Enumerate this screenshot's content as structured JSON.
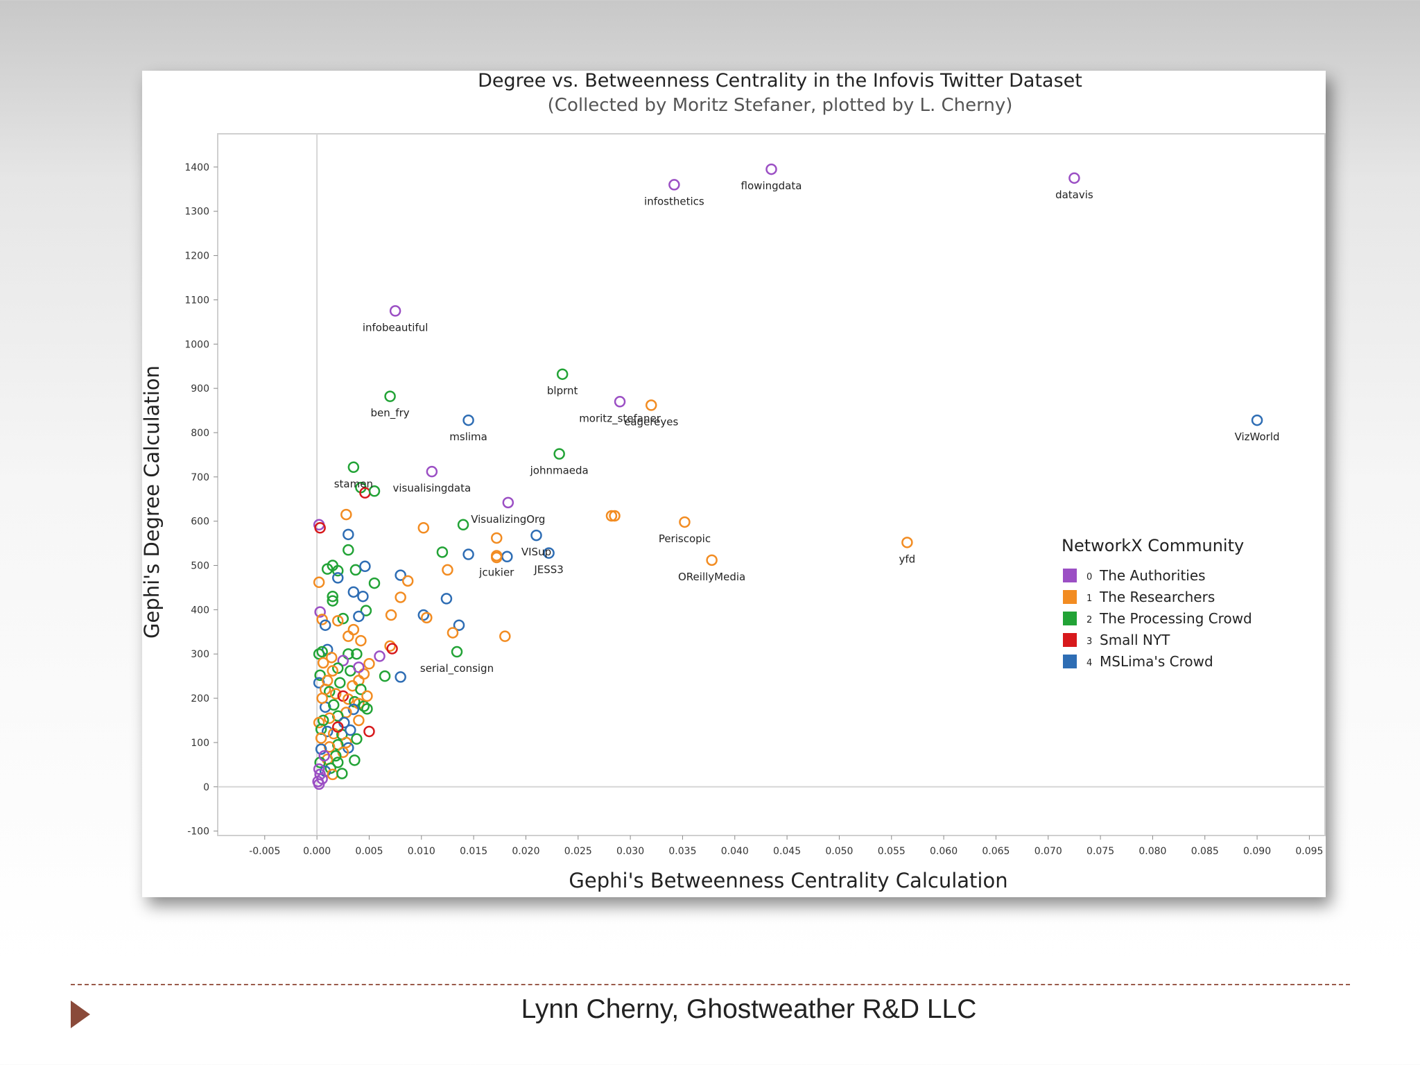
{
  "chart_data": {
    "type": "scatter",
    "title": "Degree vs. Betweenness Centrality in the Infovis Twitter Dataset",
    "subtitle": "(Collected by Moritz Stefaner, plotted by L. Cherny)",
    "xlabel": "Gephi's Betweenness Centrality Calculation",
    "ylabel": "Gephi's Degree Calculation",
    "xlim": [
      -0.0095,
      0.0965
    ],
    "ylim": [
      -110,
      1475
    ],
    "x_ticks": [
      -0.005,
      0.0,
      0.005,
      0.01,
      0.015,
      0.02,
      0.025,
      0.03,
      0.035,
      0.04,
      0.045,
      0.05,
      0.055,
      0.06,
      0.065,
      0.07,
      0.075,
      0.08,
      0.085,
      0.09,
      0.095
    ],
    "x_tick_labels": [
      "-0.005",
      "0.000",
      "0.005",
      "0.010",
      "0.015",
      "0.020",
      "0.025",
      "0.030",
      "0.035",
      "0.040",
      "0.045",
      "0.050",
      "0.055",
      "0.060",
      "0.065",
      "0.070",
      "0.075",
      "0.080",
      "0.085",
      "0.090",
      "0.095"
    ],
    "y_ticks": [
      -100,
      0,
      100,
      200,
      300,
      400,
      500,
      600,
      700,
      800,
      900,
      1000,
      1100,
      1200,
      1300,
      1400
    ],
    "y_tick_labels": [
      "-100",
      "0",
      "100",
      "200",
      "300",
      "400",
      "500",
      "600",
      "700",
      "800",
      "900",
      "1000",
      "1100",
      "1200",
      "1300",
      "1400"
    ],
    "legend": {
      "title": "NetworkX Community",
      "position": "right-middle",
      "entries": [
        {
          "id": 0,
          "num": "0",
          "name": "The Authorities",
          "color": "#9b4fc4"
        },
        {
          "id": 1,
          "num": "1",
          "name": "The Researchers",
          "color": "#f28c22"
        },
        {
          "id": 2,
          "num": "2",
          "name": "The Processing Crowd",
          "color": "#22a336"
        },
        {
          "id": 3,
          "num": "3",
          "name": "Small NYT",
          "color": "#d7191c"
        },
        {
          "id": 4,
          "num": "4",
          "name": "MSLima's Crowd",
          "color": "#2e6db4"
        }
      ]
    },
    "labeled_points": [
      {
        "label": "infosthetics",
        "x": 0.0342,
        "y": 1360,
        "group": 0
      },
      {
        "label": "flowingdata",
        "x": 0.0435,
        "y": 1395,
        "group": 0
      },
      {
        "label": "datavis",
        "x": 0.0725,
        "y": 1375,
        "group": 0
      },
      {
        "label": "infobeautiful",
        "x": 0.0075,
        "y": 1075,
        "group": 0
      },
      {
        "label": "blprnt",
        "x": 0.0235,
        "y": 932,
        "group": 2
      },
      {
        "label": "moritz_stefaner",
        "x": 0.029,
        "y": 870,
        "group": 0
      },
      {
        "label": "eagereyes",
        "x": 0.032,
        "y": 862,
        "group": 1
      },
      {
        "label": "ben_fry",
        "x": 0.007,
        "y": 882,
        "group": 2
      },
      {
        "label": "mslima",
        "x": 0.0145,
        "y": 828,
        "group": 4
      },
      {
        "label": "VizWorld",
        "x": 0.09,
        "y": 828,
        "group": 4
      },
      {
        "label": "johnmaeda",
        "x": 0.0232,
        "y": 752,
        "group": 2
      },
      {
        "label": "stamen",
        "x": 0.0035,
        "y": 722,
        "group": 2
      },
      {
        "label": "visualisingdata",
        "x": 0.011,
        "y": 712,
        "group": 0
      },
      {
        "label": "VisualizingOrg",
        "x": 0.0183,
        "y": 642,
        "group": 0
      },
      {
        "label": "VISup",
        "x": 0.021,
        "y": 568,
        "group": 4
      },
      {
        "label": "Periscopic",
        "x": 0.0352,
        "y": 598,
        "group": 1
      },
      {
        "label": "yfd",
        "x": 0.0565,
        "y": 552,
        "group": 1
      },
      {
        "label": "jcukier",
        "x": 0.0172,
        "y": 522,
        "group": 1
      },
      {
        "label": "JESS3",
        "x": 0.0222,
        "y": 528,
        "group": 4
      },
      {
        "label": "OReillyMedia",
        "x": 0.0378,
        "y": 512,
        "group": 1
      },
      {
        "label": "serial_consign",
        "x": 0.0134,
        "y": 305,
        "group": 2
      }
    ],
    "other_points": [
      {
        "x": 0.0002,
        "y": 592,
        "group": 0
      },
      {
        "x": 0.0003,
        "y": 585,
        "group": 3
      },
      {
        "x": 0.0028,
        "y": 615,
        "group": 1
      },
      {
        "x": 0.0042,
        "y": 676,
        "group": 2
      },
      {
        "x": 0.0046,
        "y": 664,
        "group": 3
      },
      {
        "x": 0.0055,
        "y": 668,
        "group": 2
      },
      {
        "x": 0.003,
        "y": 570,
        "group": 4
      },
      {
        "x": 0.003,
        "y": 535,
        "group": 2
      },
      {
        "x": 0.001,
        "y": 492,
        "group": 2
      },
      {
        "x": 0.0015,
        "y": 500,
        "group": 2
      },
      {
        "x": 0.002,
        "y": 488,
        "group": 2
      },
      {
        "x": 0.002,
        "y": 472,
        "group": 4
      },
      {
        "x": 0.0002,
        "y": 462,
        "group": 1
      },
      {
        "x": 0.0037,
        "y": 490,
        "group": 2
      },
      {
        "x": 0.0046,
        "y": 498,
        "group": 4
      },
      {
        "x": 0.0055,
        "y": 460,
        "group": 2
      },
      {
        "x": 0.0035,
        "y": 440,
        "group": 4
      },
      {
        "x": 0.0044,
        "y": 430,
        "group": 4
      },
      {
        "x": 0.0015,
        "y": 430,
        "group": 2
      },
      {
        "x": 0.0015,
        "y": 420,
        "group": 2
      },
      {
        "x": 0.0047,
        "y": 398,
        "group": 2
      },
      {
        "x": 0.004,
        "y": 385,
        "group": 4
      },
      {
        "x": 0.0025,
        "y": 380,
        "group": 2
      },
      {
        "x": 0.002,
        "y": 375,
        "group": 1
      },
      {
        "x": 0.0003,
        "y": 395,
        "group": 0
      },
      {
        "x": 0.0005,
        "y": 378,
        "group": 1
      },
      {
        "x": 0.0008,
        "y": 365,
        "group": 4
      },
      {
        "x": 0.0035,
        "y": 355,
        "group": 1
      },
      {
        "x": 0.003,
        "y": 340,
        "group": 1
      },
      {
        "x": 0.0042,
        "y": 330,
        "group": 1
      },
      {
        "x": 0.0102,
        "y": 585,
        "group": 1
      },
      {
        "x": 0.014,
        "y": 592,
        "group": 2
      },
      {
        "x": 0.0172,
        "y": 562,
        "group": 1
      },
      {
        "x": 0.012,
        "y": 530,
        "group": 2
      },
      {
        "x": 0.0145,
        "y": 525,
        "group": 4
      },
      {
        "x": 0.0172,
        "y": 518,
        "group": 1
      },
      {
        "x": 0.0182,
        "y": 520,
        "group": 4
      },
      {
        "x": 0.0125,
        "y": 490,
        "group": 1
      },
      {
        "x": 0.008,
        "y": 478,
        "group": 4
      },
      {
        "x": 0.0087,
        "y": 465,
        "group": 1
      },
      {
        "x": 0.0124,
        "y": 425,
        "group": 4
      },
      {
        "x": 0.008,
        "y": 428,
        "group": 1
      },
      {
        "x": 0.0071,
        "y": 388,
        "group": 1
      },
      {
        "x": 0.0102,
        "y": 388,
        "group": 4
      },
      {
        "x": 0.0105,
        "y": 382,
        "group": 1
      },
      {
        "x": 0.0136,
        "y": 365,
        "group": 4
      },
      {
        "x": 0.013,
        "y": 348,
        "group": 1
      },
      {
        "x": 0.018,
        "y": 340,
        "group": 1
      },
      {
        "x": 0.0282,
        "y": 612,
        "group": 1
      },
      {
        "x": 0.0285,
        "y": 612,
        "group": 1
      },
      {
        "x": 0.007,
        "y": 318,
        "group": 1
      },
      {
        "x": 0.0072,
        "y": 312,
        "group": 3
      },
      {
        "x": 0.006,
        "y": 295,
        "group": 0
      },
      {
        "x": 0.0065,
        "y": 250,
        "group": 2
      },
      {
        "x": 0.008,
        "y": 248,
        "group": 4
      },
      {
        "x": 0.005,
        "y": 278,
        "group": 1
      },
      {
        "x": 0.0045,
        "y": 255,
        "group": 1
      },
      {
        "x": 0.004,
        "y": 240,
        "group": 1
      },
      {
        "x": 0.003,
        "y": 300,
        "group": 2
      },
      {
        "x": 0.0025,
        "y": 285,
        "group": 0
      },
      {
        "x": 0.002,
        "y": 268,
        "group": 2
      },
      {
        "x": 0.0015,
        "y": 262,
        "group": 1
      },
      {
        "x": 0.001,
        "y": 310,
        "group": 4
      },
      {
        "x": 0.0005,
        "y": 305,
        "group": 2
      },
      {
        "x": 0.0002,
        "y": 300,
        "group": 2
      },
      {
        "x": 0.0003,
        "y": 252,
        "group": 2
      },
      {
        "x": 0.0002,
        "y": 235,
        "group": 4
      },
      {
        "x": 0.0008,
        "y": 220,
        "group": 1
      },
      {
        "x": 0.0012,
        "y": 215,
        "group": 2
      },
      {
        "x": 0.0018,
        "y": 210,
        "group": 1
      },
      {
        "x": 0.0025,
        "y": 205,
        "group": 3
      },
      {
        "x": 0.003,
        "y": 198,
        "group": 1
      },
      {
        "x": 0.0036,
        "y": 192,
        "group": 2
      },
      {
        "x": 0.004,
        "y": 188,
        "group": 1
      },
      {
        "x": 0.0045,
        "y": 182,
        "group": 2
      },
      {
        "x": 0.0048,
        "y": 176,
        "group": 2
      },
      {
        "x": 0.0035,
        "y": 175,
        "group": 4
      },
      {
        "x": 0.0028,
        "y": 168,
        "group": 1
      },
      {
        "x": 0.002,
        "y": 160,
        "group": 2
      },
      {
        "x": 0.0012,
        "y": 155,
        "group": 1
      },
      {
        "x": 0.0006,
        "y": 150,
        "group": 2
      },
      {
        "x": 0.0002,
        "y": 145,
        "group": 1
      },
      {
        "x": 0.0004,
        "y": 130,
        "group": 2
      },
      {
        "x": 0.001,
        "y": 125,
        "group": 4
      },
      {
        "x": 0.0016,
        "y": 120,
        "group": 1
      },
      {
        "x": 0.0024,
        "y": 118,
        "group": 2
      },
      {
        "x": 0.0032,
        "y": 128,
        "group": 4
      },
      {
        "x": 0.005,
        "y": 125,
        "group": 3
      },
      {
        "x": 0.0038,
        "y": 108,
        "group": 2
      },
      {
        "x": 0.0028,
        "y": 100,
        "group": 1
      },
      {
        "x": 0.002,
        "y": 95,
        "group": 2
      },
      {
        "x": 0.0012,
        "y": 90,
        "group": 1
      },
      {
        "x": 0.0004,
        "y": 85,
        "group": 4
      },
      {
        "x": 0.003,
        "y": 88,
        "group": 4
      },
      {
        "x": 0.0025,
        "y": 78,
        "group": 1
      },
      {
        "x": 0.0018,
        "y": 70,
        "group": 2
      },
      {
        "x": 0.001,
        "y": 62,
        "group": 1
      },
      {
        "x": 0.0003,
        "y": 55,
        "group": 2
      },
      {
        "x": 0.002,
        "y": 55,
        "group": 2
      },
      {
        "x": 0.0013,
        "y": 42,
        "group": 2
      },
      {
        "x": 0.0008,
        "y": 35,
        "group": 4
      },
      {
        "x": 0.0003,
        "y": 28,
        "group": 0
      },
      {
        "x": 0.0015,
        "y": 28,
        "group": 1
      },
      {
        "x": 0.0005,
        "y": 18,
        "group": 0
      },
      {
        "x": 0.0001,
        "y": 12,
        "group": 0
      },
      {
        "x": 0.0002,
        "y": 6,
        "group": 0
      },
      {
        "x": 0.001,
        "y": 240,
        "group": 1
      },
      {
        "x": 0.0022,
        "y": 235,
        "group": 2
      },
      {
        "x": 0.0034,
        "y": 228,
        "group": 1
      },
      {
        "x": 0.0042,
        "y": 220,
        "group": 2
      },
      {
        "x": 0.0026,
        "y": 145,
        "group": 4
      },
      {
        "x": 0.004,
        "y": 150,
        "group": 1
      },
      {
        "x": 0.0008,
        "y": 180,
        "group": 4
      },
      {
        "x": 0.0016,
        "y": 185,
        "group": 2
      },
      {
        "x": 0.0005,
        "y": 200,
        "group": 1
      },
      {
        "x": 0.0032,
        "y": 262,
        "group": 2
      },
      {
        "x": 0.0038,
        "y": 300,
        "group": 2
      },
      {
        "x": 0.0014,
        "y": 292,
        "group": 1
      },
      {
        "x": 0.0006,
        "y": 280,
        "group": 1
      },
      {
        "x": 0.0048,
        "y": 205,
        "group": 1
      },
      {
        "x": 0.002,
        "y": 135,
        "group": 3
      },
      {
        "x": 0.0004,
        "y": 110,
        "group": 1
      },
      {
        "x": 0.0036,
        "y": 60,
        "group": 2
      },
      {
        "x": 0.0024,
        "y": 30,
        "group": 2
      },
      {
        "x": 0.0007,
        "y": 70,
        "group": 0
      },
      {
        "x": 0.0002,
        "y": 40,
        "group": 0
      },
      {
        "x": 0.004,
        "y": 270,
        "group": 0
      }
    ]
  },
  "footer": {
    "text": "Lynn Cherny, Ghostweather R&D LLC"
  }
}
